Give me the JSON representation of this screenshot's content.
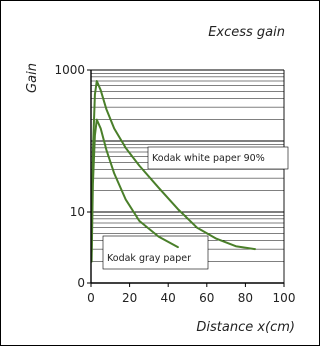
{
  "chart_data": {
    "type": "line",
    "title": "Excess gain",
    "xlabel": "Distance x(cm)",
    "ylabel": "Gain",
    "x_scale": "linear",
    "y_scale": "log",
    "xlim": [
      0,
      100
    ],
    "ylim": [
      1,
      1000
    ],
    "x_ticks": [
      0,
      20,
      40,
      60,
      80,
      100
    ],
    "y_ticks": [
      {
        "value": 1,
        "label": "0"
      },
      {
        "value": 10,
        "label": "10"
      },
      {
        "value": 1000,
        "label": "1000"
      }
    ],
    "grid": true,
    "line_color": "#4a7f2a",
    "series": [
      {
        "name": "Kodak white paper 90%",
        "label_text": "Kodak white paper 90%",
        "x": [
          0.3,
          1,
          2,
          3,
          5,
          8,
          12,
          18,
          25,
          35,
          45,
          55,
          65,
          75,
          85
        ],
        "y": [
          2.8,
          70,
          450,
          700,
          520,
          280,
          150,
          80,
          45,
          22,
          11,
          6,
          4.2,
          3.3,
          3.0
        ]
      },
      {
        "name": "Kodak gray paper",
        "label_text": "Kodak gray paper",
        "x": [
          0.3,
          1,
          2,
          3,
          5,
          8,
          12,
          18,
          25,
          35,
          45
        ],
        "y": [
          2.0,
          25,
          120,
          200,
          150,
          75,
          35,
          15,
          7.5,
          4.5,
          3.2
        ]
      }
    ]
  }
}
